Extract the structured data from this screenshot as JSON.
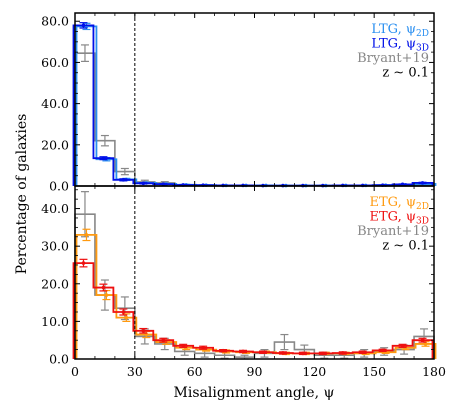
{
  "chart_data": [
    {
      "type": "bar",
      "panel": "top",
      "ylabel": "Percentage of galaxies",
      "xlim": [
        0,
        180
      ],
      "ylim": [
        0,
        84
      ],
      "bin_width": 10,
      "x_edges": [
        0,
        10,
        20,
        30,
        40,
        50,
        60,
        70,
        80,
        90,
        100,
        110,
        120,
        130,
        140,
        150,
        160,
        170,
        180
      ],
      "yticks": [
        0,
        20,
        40,
        60,
        80
      ],
      "ytick_labels": [
        "0.0",
        "20.0",
        "40.0",
        "60.0",
        "80.0"
      ],
      "vline_x": 30,
      "legend_position": "top-right",
      "legend_text": [
        {
          "text": "LTG, ψ",
          "sub": "2D",
          "color": "#2a8ff0"
        },
        {
          "text": "LTG, ψ",
          "sub": "3D",
          "color": "#0010e8"
        },
        {
          "text": "Bryant+19",
          "sub": "",
          "color": "#888888"
        },
        {
          "text": "z ∼ 0.1",
          "sub": "",
          "color": "#000000"
        }
      ],
      "series": [
        {
          "name": "LTG, ψ2D",
          "color": "#2a8ff0",
          "values": [
            77.5,
            13.0,
            3.2,
            1.5,
            1.0,
            0.6,
            0.4,
            0.3,
            0.3,
            0.3,
            0.2,
            0.2,
            0.2,
            0.3,
            0.3,
            0.4,
            0.6,
            1.0
          ],
          "errors": [
            1.5,
            0.8,
            0.5,
            0.3,
            0.2,
            0.2,
            0.1,
            0.1,
            0.1,
            0.1,
            0.1,
            0.1,
            0.1,
            0.1,
            0.1,
            0.1,
            0.2,
            0.3
          ]
        },
        {
          "name": "LTG, ψ3D",
          "color": "#0010e8",
          "values": [
            78.0,
            13.5,
            3.0,
            1.3,
            0.9,
            0.5,
            0.4,
            0.3,
            0.3,
            0.2,
            0.2,
            0.2,
            0.2,
            0.3,
            0.3,
            0.4,
            0.8,
            1.5
          ],
          "errors": [
            1.3,
            0.7,
            0.5,
            0.3,
            0.2,
            0.2,
            0.1,
            0.1,
            0.1,
            0.1,
            0.1,
            0.1,
            0.1,
            0.1,
            0.1,
            0.1,
            0.2,
            0.3
          ]
        },
        {
          "name": "Bryant+19",
          "color": "#888888",
          "values": [
            64.5,
            22.0,
            7.0,
            2.0,
            1.5,
            0.5,
            0.3,
            0.2,
            0.2,
            0.2,
            0.2,
            0.2,
            0.2,
            0.2,
            0.2,
            0.2,
            0.3,
            0.5
          ],
          "errors": [
            4.0,
            2.5,
            1.5,
            0.8,
            0.6,
            0.3,
            0.2,
            0.1,
            0.1,
            0.1,
            0.1,
            0.1,
            0.1,
            0.1,
            0.1,
            0.1,
            0.2,
            0.3
          ]
        }
      ]
    },
    {
      "type": "bar",
      "panel": "bottom",
      "xlabel": "Misalignment angle, ψ",
      "xlim": [
        0,
        180
      ],
      "ylim": [
        0,
        46
      ],
      "bin_width": 10,
      "x_edges": [
        0,
        10,
        20,
        30,
        40,
        50,
        60,
        70,
        80,
        90,
        100,
        110,
        120,
        130,
        140,
        150,
        160,
        170,
        180
      ],
      "xticks": [
        0,
        30,
        60,
        90,
        120,
        150,
        180
      ],
      "xtick_labels": [
        "0",
        "30",
        "60",
        "90",
        "120",
        "150",
        "180"
      ],
      "yticks": [
        0,
        10,
        20,
        30,
        40
      ],
      "ytick_labels": [
        "0.0",
        "10.0",
        "20.0",
        "30.0",
        "40.0"
      ],
      "vline_x": 30,
      "legend_position": "top-right",
      "legend_text": [
        {
          "text": "ETG, ψ",
          "sub": "2D",
          "color": "#ff9a10"
        },
        {
          "text": "ETG, ψ",
          "sub": "3D",
          "color": "#ee1010"
        },
        {
          "text": "Bryant+19",
          "sub": "",
          "color": "#888888"
        },
        {
          "text": "z ∼ 0.1",
          "sub": "",
          "color": "#000000"
        }
      ],
      "series": [
        {
          "name": "ETG, ψ2D",
          "color": "#ff9a10",
          "values": [
            33.0,
            17.0,
            11.0,
            6.5,
            4.5,
            3.0,
            2.5,
            2.0,
            1.8,
            1.8,
            1.5,
            1.5,
            1.5,
            1.5,
            1.5,
            1.8,
            3.0,
            4.0
          ],
          "errors": [
            1.5,
            1.2,
            1.0,
            0.8,
            0.6,
            0.5,
            0.4,
            0.4,
            0.3,
            0.3,
            0.3,
            0.3,
            0.3,
            0.3,
            0.3,
            0.3,
            0.5,
            0.6
          ]
        },
        {
          "name": "ETG, ψ3D",
          "color": "#ee1010",
          "values": [
            25.5,
            19.0,
            12.5,
            7.5,
            5.0,
            3.5,
            3.0,
            2.2,
            2.0,
            1.8,
            1.6,
            1.5,
            1.5,
            1.6,
            1.8,
            2.3,
            3.5,
            5.0
          ],
          "errors": [
            1.0,
            0.9,
            0.8,
            0.6,
            0.5,
            0.4,
            0.4,
            0.3,
            0.3,
            0.3,
            0.3,
            0.3,
            0.3,
            0.3,
            0.3,
            0.3,
            0.4,
            0.5
          ]
        },
        {
          "name": "Bryant+19",
          "color": "#888888",
          "values": [
            38.5,
            17.0,
            13.5,
            6.0,
            4.0,
            2.0,
            1.5,
            1.0,
            0.5,
            1.5,
            4.5,
            2.5,
            1.0,
            1.0,
            1.5,
            2.0,
            2.5,
            6.0
          ],
          "errors": [
            6.0,
            4.0,
            3.0,
            2.0,
            1.5,
            1.0,
            1.0,
            0.8,
            0.5,
            1.0,
            2.0,
            1.2,
            0.8,
            0.8,
            1.0,
            1.0,
            1.2,
            2.0
          ]
        }
      ]
    }
  ]
}
